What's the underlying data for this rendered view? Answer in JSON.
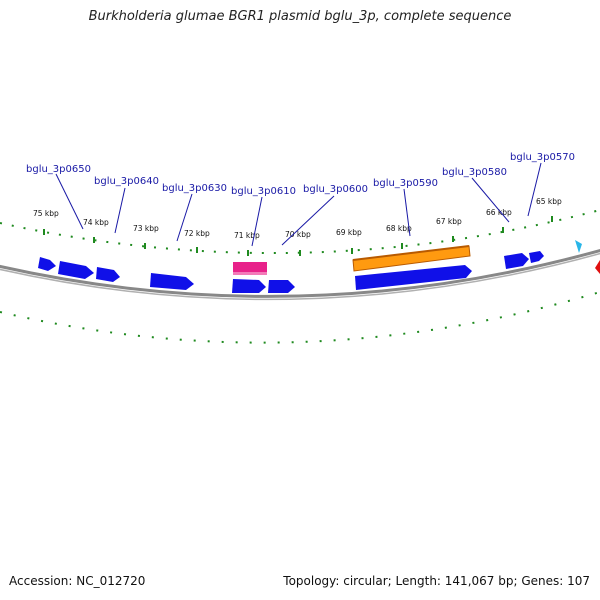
{
  "title": "Burkholderia glumae BGR1 plasmid bglu_3p, complete sequence",
  "footer": {
    "accession": "Accession: NC_012720",
    "summary": "Topology: circular; Length: 141,067 bp; Genes: 107"
  },
  "colors": {
    "gene": "#1010e8",
    "gene_alt": "#e8228a",
    "orange_feature": "#ff9a10",
    "orange_outline": "#b85a00",
    "backbone": "#888888",
    "tick": "#1f8a1f",
    "label": "#1a1aa6",
    "small_marker": "#29b6e8",
    "edge_marker": "#e01010"
  },
  "kbp_ticks": [
    "75 kbp",
    "74 kbp",
    "73 kbp",
    "72 kbp",
    "71 kbp",
    "70 kbp",
    "69 kbp",
    "68 kbp",
    "67 kbp",
    "66 kbp",
    "65 kbp"
  ],
  "gene_labels": [
    "bglu_3p0650",
    "bglu_3p0640",
    "bglu_3p0630",
    "bglu_3p0610",
    "bglu_3p0600",
    "bglu_3p0590",
    "bglu_3p0580",
    "bglu_3p0570"
  ]
}
